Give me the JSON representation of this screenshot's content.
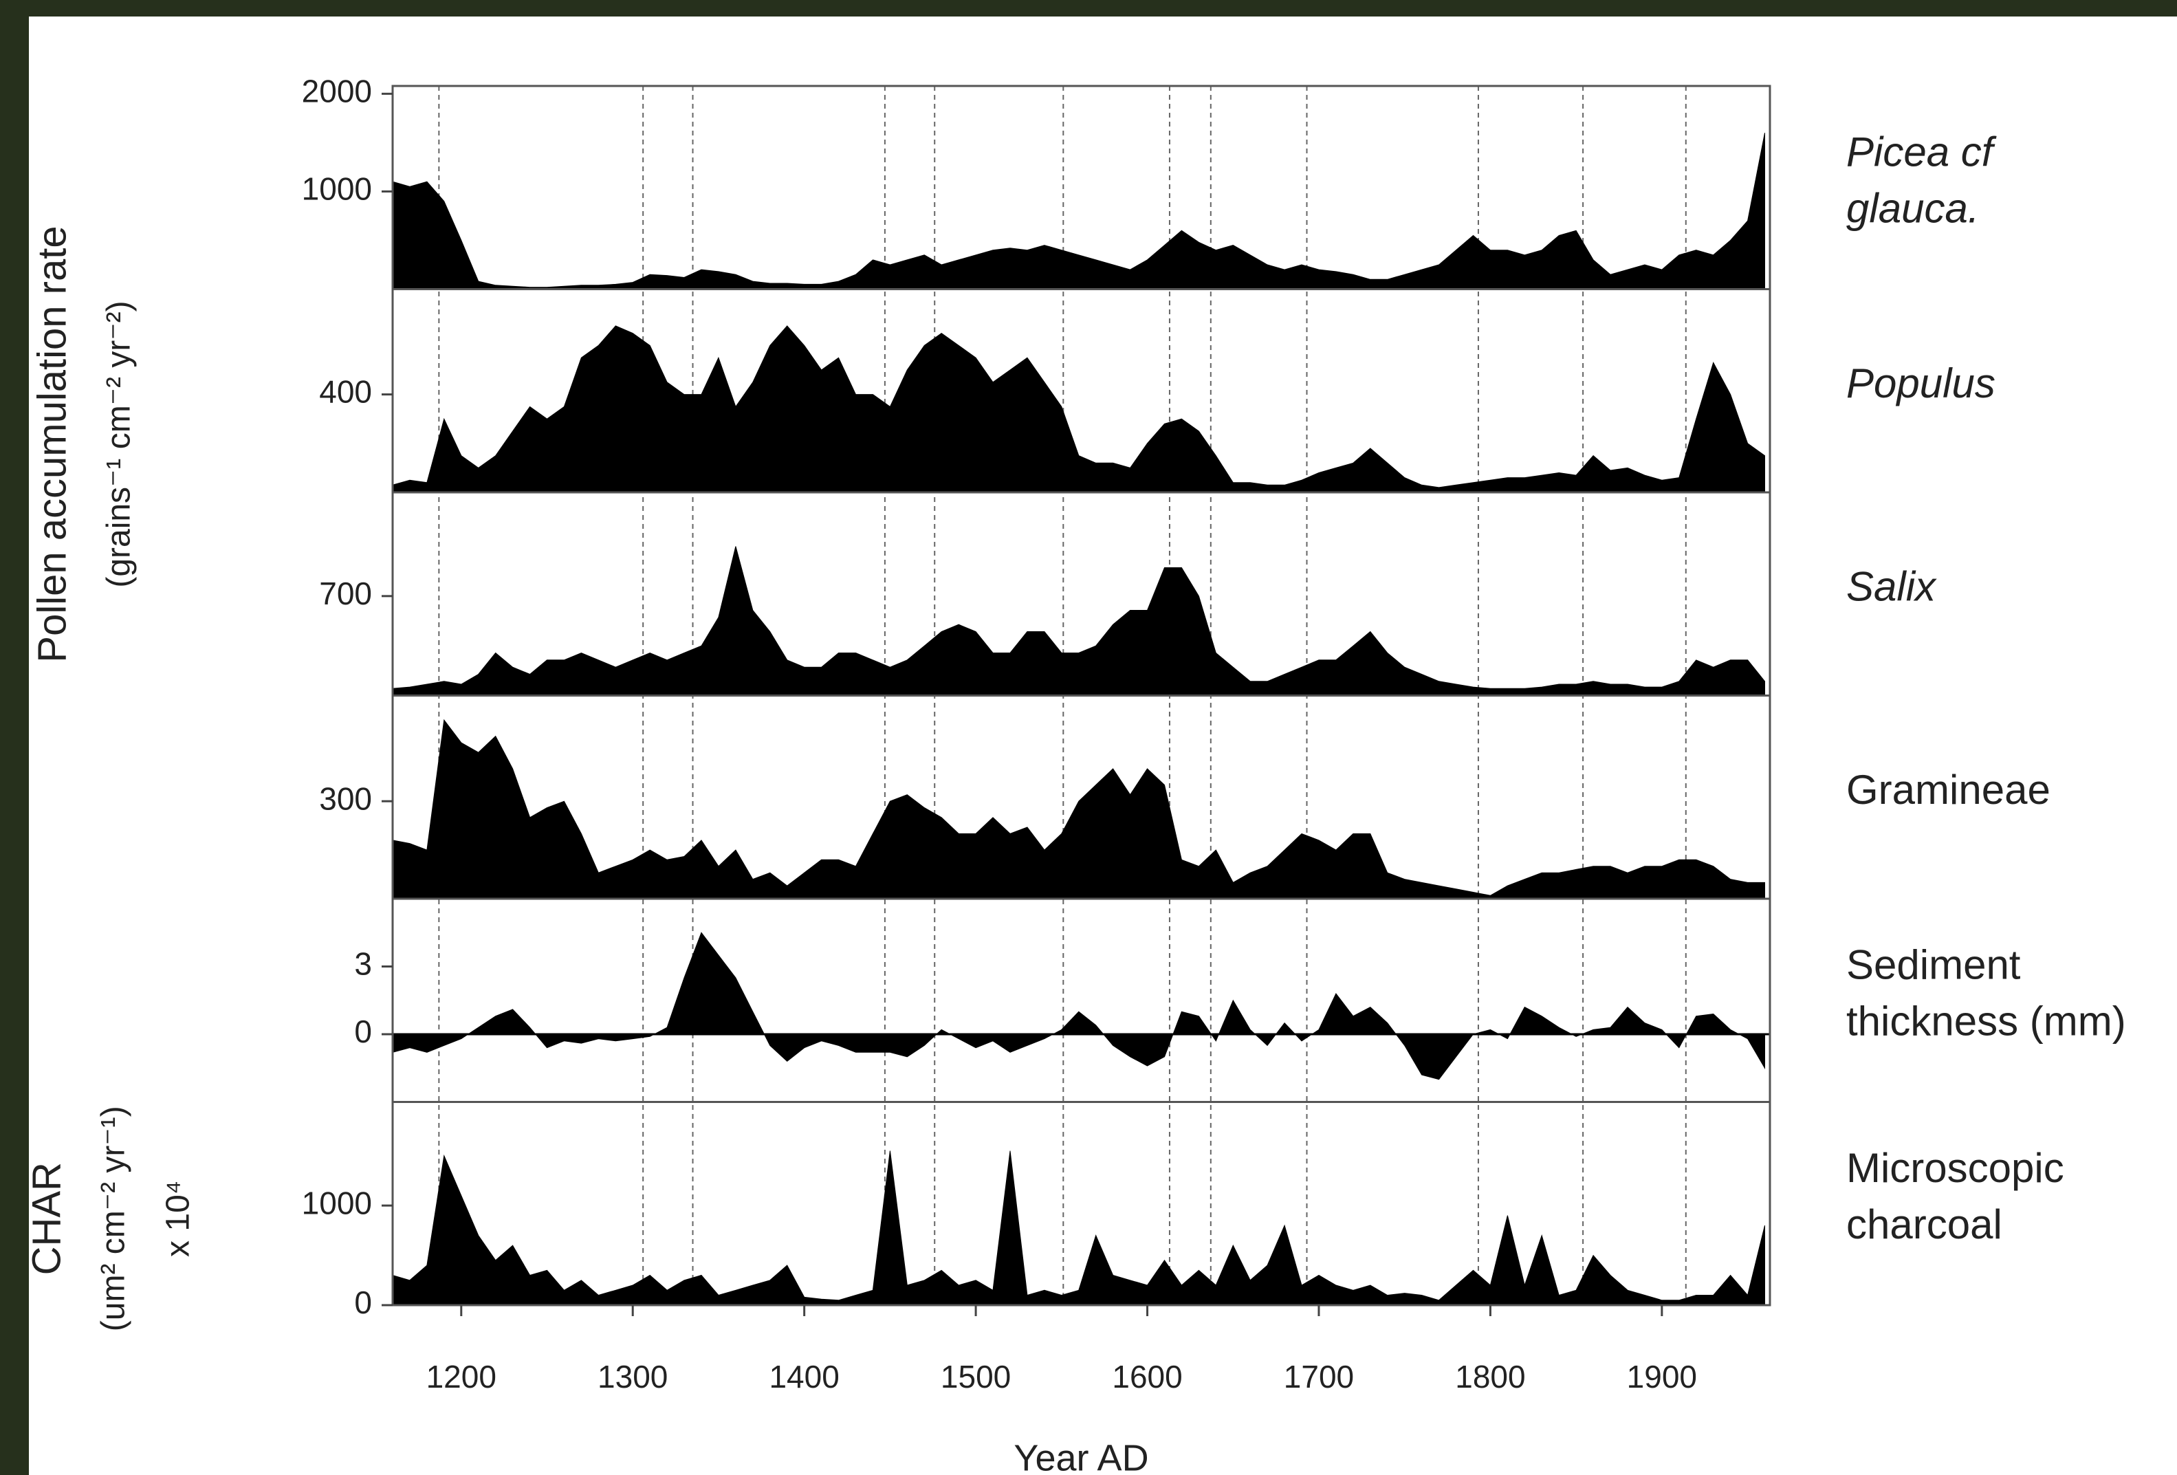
{
  "chart_data": {
    "type": "panels",
    "xlabel": "Year AD",
    "ylabel": [
      "Pollen accumulation rate",
      "(grains⁻¹ cm⁻² yr⁻²)"
    ],
    "xlim": [
      1160,
      1963
    ],
    "xticks": [
      1200,
      1300,
      1400,
      1500,
      1600,
      1700,
      1800,
      1900
    ],
    "vlines": [
      1187,
      1306,
      1335,
      1447,
      1476,
      1551,
      1613,
      1637,
      1693,
      1793,
      1854,
      1914
    ],
    "x": [
      1160,
      1170,
      1180,
      1190,
      1200,
      1210,
      1220,
      1230,
      1240,
      1250,
      1260,
      1270,
      1280,
      1290,
      1300,
      1310,
      1320,
      1330,
      1340,
      1350,
      1360,
      1370,
      1380,
      1390,
      1400,
      1410,
      1420,
      1430,
      1440,
      1450,
      1460,
      1470,
      1480,
      1490,
      1500,
      1510,
      1520,
      1530,
      1540,
      1550,
      1560,
      1570,
      1580,
      1590,
      1600,
      1610,
      1620,
      1630,
      1640,
      1650,
      1660,
      1670,
      1680,
      1690,
      1700,
      1710,
      1720,
      1730,
      1740,
      1750,
      1760,
      1770,
      1780,
      1790,
      1800,
      1810,
      1820,
      1830,
      1840,
      1850,
      1860,
      1870,
      1880,
      1890,
      1900,
      1910,
      1920,
      1930,
      1940,
      1950,
      1960
    ],
    "panels": [
      {
        "type": "area",
        "label": [
          "Picea cf",
          "glauca."
        ],
        "italic": true,
        "color": "#000000",
        "ylim": [
          0,
          2080
        ],
        "yticks": [
          1000,
          2000
        ],
        "values": [
          1100,
          1050,
          1100,
          900,
          500,
          80,
          40,
          30,
          20,
          20,
          30,
          40,
          40,
          50,
          70,
          150,
          140,
          120,
          200,
          180,
          150,
          80,
          60,
          60,
          50,
          50,
          80,
          150,
          300,
          250,
          300,
          350,
          250,
          300,
          350,
          400,
          420,
          400,
          450,
          400,
          350,
          300,
          250,
          200,
          300,
          450,
          600,
          480,
          400,
          450,
          350,
          250,
          200,
          250,
          200,
          180,
          150,
          100,
          100,
          150,
          200,
          250,
          400,
          550,
          400,
          400,
          350,
          400,
          550,
          600,
          300,
          150,
          200,
          250,
          200,
          350,
          400,
          350,
          500,
          700,
          1600
        ]
      },
      {
        "type": "area",
        "label": [
          "Populus"
        ],
        "italic": true,
        "color": "#000000",
        "ylim": [
          0,
          830
        ],
        "yticks": [
          400
        ],
        "values": [
          30,
          50,
          40,
          300,
          150,
          100,
          150,
          250,
          350,
          300,
          350,
          550,
          600,
          680,
          650,
          600,
          450,
          400,
          400,
          550,
          350,
          450,
          600,
          680,
          600,
          500,
          550,
          400,
          400,
          350,
          500,
          600,
          650,
          600,
          550,
          450,
          500,
          550,
          450,
          350,
          150,
          120,
          120,
          100,
          200,
          280,
          300,
          250,
          150,
          40,
          40,
          30,
          30,
          50,
          80,
          100,
          120,
          180,
          120,
          60,
          30,
          20,
          30,
          40,
          50,
          60,
          60,
          70,
          80,
          70,
          150,
          90,
          100,
          70,
          50,
          60,
          300,
          530,
          400,
          200,
          150
        ]
      },
      {
        "type": "area",
        "label": [
          "Salix"
        ],
        "italic": true,
        "color": "#000000",
        "ylim": [
          0,
          1430
        ],
        "yticks": [
          700
        ],
        "values": [
          50,
          60,
          80,
          100,
          80,
          150,
          300,
          200,
          150,
          250,
          250,
          300,
          250,
          200,
          250,
          300,
          250,
          300,
          350,
          550,
          1050,
          600,
          450,
          250,
          200,
          200,
          300,
          300,
          250,
          200,
          250,
          350,
          450,
          500,
          450,
          300,
          300,
          450,
          450,
          300,
          300,
          350,
          500,
          600,
          600,
          900,
          900,
          700,
          300,
          200,
          100,
          100,
          150,
          200,
          250,
          250,
          350,
          450,
          300,
          200,
          150,
          100,
          80,
          60,
          50,
          50,
          50,
          60,
          80,
          80,
          100,
          80,
          80,
          60,
          60,
          100,
          250,
          200,
          250,
          250,
          100
        ]
      },
      {
        "type": "area",
        "label": [
          "Gramineae"
        ],
        "italic": false,
        "color": "#000000",
        "ylim": [
          0,
          625
        ],
        "yticks": [
          300
        ],
        "values": [
          180,
          170,
          150,
          550,
          480,
          450,
          500,
          400,
          250,
          280,
          300,
          200,
          80,
          100,
          120,
          150,
          120,
          130,
          180,
          100,
          150,
          60,
          80,
          40,
          80,
          120,
          120,
          100,
          200,
          300,
          320,
          280,
          250,
          200,
          200,
          250,
          200,
          220,
          150,
          200,
          300,
          350,
          400,
          320,
          400,
          350,
          120,
          100,
          150,
          50,
          80,
          100,
          150,
          200,
          180,
          150,
          200,
          200,
          80,
          60,
          50,
          40,
          30,
          20,
          10,
          40,
          60,
          80,
          80,
          90,
          100,
          100,
          80,
          100,
          100,
          120,
          120,
          100,
          60,
          50,
          50
        ]
      },
      {
        "type": "area",
        "label": [
          "Sediment",
          "thickness (mm)"
        ],
        "italic": false,
        "color": "#000000",
        "ylim": [
          -3,
          6
        ],
        "yticks": [
          0,
          3
        ],
        "values": [
          -0.8,
          -0.6,
          -0.8,
          -0.5,
          -0.2,
          0.3,
          0.8,
          1.1,
          0.3,
          -0.6,
          -0.3,
          -0.4,
          -0.2,
          -0.3,
          -0.2,
          -0.1,
          0.3,
          2.5,
          4.5,
          3.5,
          2.5,
          1.0,
          -0.5,
          -1.2,
          -0.6,
          -0.3,
          -0.5,
          -0.8,
          -0.8,
          -0.8,
          -1.0,
          -0.5,
          0.2,
          -0.2,
          -0.6,
          -0.3,
          -0.8,
          -0.5,
          -0.2,
          0.2,
          1.0,
          0.4,
          -0.5,
          -1.0,
          -1.4,
          -1.0,
          1.0,
          0.8,
          -0.3,
          1.5,
          0.2,
          -0.5,
          0.5,
          -0.3,
          0.2,
          1.8,
          0.8,
          1.2,
          0.5,
          -0.5,
          -1.8,
          -2.0,
          -1.0,
          0.0,
          0.2,
          -0.2,
          1.2,
          0.8,
          0.3,
          -0.1,
          0.2,
          0.3,
          1.2,
          0.5,
          0.2,
          -0.6,
          0.8,
          0.9,
          0.2,
          -0.2,
          -1.5
        ]
      },
      {
        "type": "area",
        "label": [
          "Microscopic",
          "charcoal"
        ],
        "italic": false,
        "color": "#000000",
        "ylabel": [
          "CHAR",
          "(um² cm⁻² yr⁻¹)",
          "x 10⁴"
        ],
        "ylim": [
          0,
          2040
        ],
        "yticks": [
          0,
          1000
        ],
        "values": [
          300,
          250,
          400,
          1500,
          1100,
          700,
          450,
          600,
          300,
          350,
          150,
          250,
          100,
          150,
          200,
          300,
          150,
          250,
          300,
          100,
          150,
          200,
          250,
          400,
          80,
          60,
          50,
          100,
          150,
          1550,
          200,
          250,
          350,
          200,
          250,
          150,
          1550,
          100,
          150,
          100,
          150,
          700,
          300,
          250,
          200,
          450,
          200,
          350,
          200,
          600,
          250,
          400,
          800,
          200,
          300,
          200,
          150,
          200,
          100,
          120,
          100,
          50,
          200,
          350,
          200,
          900,
          200,
          700,
          100,
          150,
          500,
          300,
          150,
          100,
          50,
          50,
          100,
          100,
          300,
          100,
          800
        ]
      }
    ]
  }
}
